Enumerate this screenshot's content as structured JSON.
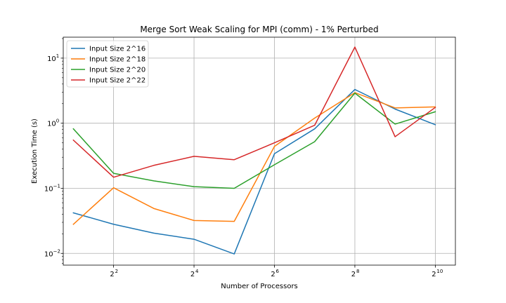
{
  "chart_data": {
    "type": "line",
    "title": "Merge Sort Weak Scaling for MPI (comm) - 1% Perturbed",
    "xlabel": "Number of Processors",
    "ylabel": "Execution Time (s)",
    "x_scale": "log2",
    "y_scale": "log10",
    "xlim": [
      1.68,
      1448
    ],
    "ylim": [
      0.0066,
      21
    ],
    "grid": true,
    "legend_position": "top-left",
    "x": [
      2,
      4,
      8,
      16,
      32,
      64,
      128,
      256,
      512,
      1024
    ],
    "x_ticks": [
      {
        "value": 4,
        "base": "2",
        "exp": "2"
      },
      {
        "value": 16,
        "base": "2",
        "exp": "4"
      },
      {
        "value": 64,
        "base": "2",
        "exp": "6"
      },
      {
        "value": 256,
        "base": "2",
        "exp": "8"
      },
      {
        "value": 1024,
        "base": "2",
        "exp": "10"
      }
    ],
    "y_ticks": [
      {
        "value": 0.01,
        "base": "10",
        "exp": "−2"
      },
      {
        "value": 0.1,
        "base": "10",
        "exp": "−1"
      },
      {
        "value": 1,
        "base": "10",
        "exp": "0"
      },
      {
        "value": 10,
        "base": "10",
        "exp": "1"
      }
    ],
    "series": [
      {
        "name": "Input Size 2^16",
        "color": "#1f77b4",
        "values": [
          0.042,
          0.028,
          0.0205,
          0.0165,
          0.0098,
          0.34,
          0.82,
          3.3,
          1.65,
          0.95
        ]
      },
      {
        "name": "Input Size 2^18",
        "color": "#ff7f0e",
        "values": [
          0.028,
          0.102,
          0.049,
          0.032,
          0.031,
          0.44,
          1.2,
          2.95,
          1.72,
          1.78
        ]
      },
      {
        "name": "Input Size 2^20",
        "color": "#2ca02c",
        "values": [
          0.82,
          0.17,
          0.13,
          0.106,
          0.1,
          0.23,
          0.52,
          2.9,
          0.97,
          1.5
        ]
      },
      {
        "name": "Input Size 2^22",
        "color": "#d62728",
        "values": [
          0.55,
          0.148,
          0.225,
          0.31,
          0.275,
          0.5,
          0.93,
          14.8,
          0.62,
          1.75
        ]
      }
    ]
  }
}
